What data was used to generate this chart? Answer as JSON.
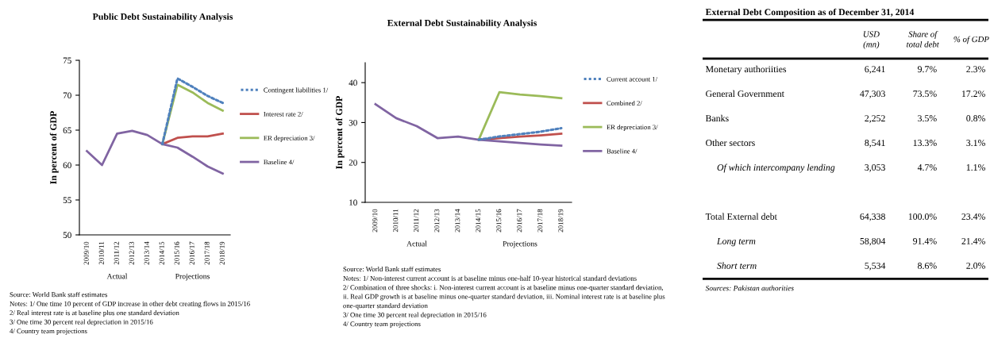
{
  "chart_data": [
    {
      "type": "line",
      "title": "Public Debt Sustainability Analysis",
      "ylabel": "In percent of GDP",
      "categories": [
        "2009/10",
        "2010/11",
        "2011/12",
        "2012/13",
        "2013/14",
        "2014/15",
        "2015/16",
        "2016/17",
        "2017/18",
        "2018/19"
      ],
      "ylim": [
        50,
        75
      ],
      "yticks": [
        50,
        55,
        60,
        65,
        70,
        75
      ],
      "legend": "right",
      "grid": false,
      "series": [
        {
          "name": "Contingent liabilities 1/",
          "color": "#4f81bd",
          "line_style": "dotted",
          "values": [
            null,
            null,
            null,
            null,
            null,
            63.0,
            72.4,
            71.2,
            69.9,
            68.9
          ]
        },
        {
          "name": "Interest rate 2/",
          "color": "#c0504d",
          "line_style": "solid",
          "values": [
            null,
            null,
            null,
            null,
            null,
            63.0,
            63.9,
            64.1,
            64.1,
            64.5
          ]
        },
        {
          "name": "ER depreciation 3/",
          "color": "#9bbb59",
          "line_style": "solid",
          "values": [
            null,
            null,
            null,
            null,
            null,
            63.0,
            71.5,
            70.4,
            68.9,
            67.8
          ]
        },
        {
          "name": "Baseline 4/",
          "color": "#8064a2",
          "line_style": "solid",
          "values": [
            62.0,
            60.0,
            64.5,
            64.9,
            64.3,
            63.0,
            62.5,
            61.2,
            59.8,
            58.8
          ]
        }
      ],
      "annotations": [
        "Actual",
        "Projections",
        "Source: World Bank staff estimates",
        "Notes: 1/ One time 10 percent of GDP increase in other debt creating flows in 2015/16",
        "2/ Real interest rate is at baseline plus one standard deviation",
        "3/ One time 30 percent real depreciation in 2015/16",
        "4/ Country team projections"
      ]
    },
    {
      "type": "line",
      "title": "External Debt Sustainability Analysis",
      "ylabel": "In percent of GDP",
      "categories": [
        "2009/10",
        "2010/11",
        "2011/12",
        "2012/13",
        "2013/14",
        "2014/15",
        "2015/16",
        "2016/17",
        "2017/18",
        "2018/19"
      ],
      "ylim": [
        10,
        45
      ],
      "yticks": [
        10,
        20,
        30,
        40
      ],
      "legend": "right",
      "grid": false,
      "series": [
        {
          "name": "Current account 1/",
          "color": "#4f81bd",
          "line_style": "dotted",
          "values": [
            null,
            null,
            null,
            null,
            null,
            25.7,
            26.5,
            27.1,
            27.7,
            28.6
          ]
        },
        {
          "name": "Combined 2/",
          "color": "#c0504d",
          "line_style": "solid",
          "values": [
            null,
            null,
            null,
            null,
            null,
            25.7,
            26.1,
            26.5,
            26.8,
            27.2
          ]
        },
        {
          "name": "ER depreciation 3/",
          "color": "#9bbb59",
          "line_style": "solid",
          "values": [
            null,
            null,
            null,
            null,
            null,
            25.7,
            37.6,
            37.0,
            36.6,
            36.1
          ]
        },
        {
          "name": "Baseline 4/",
          "color": "#8064a2",
          "line_style": "solid",
          "values": [
            34.6,
            31.1,
            29.1,
            26.1,
            26.5,
            25.7,
            25.3,
            24.9,
            24.5,
            24.2
          ]
        }
      ],
      "annotations": [
        "Actual",
        "Projections",
        "Source: World Bank staff estimates",
        "Notes: 1/ Non-interest current account is at baseline minus one-half 10-year historical standard deviations",
        "2/ Combination of three shocks: i. Non-interest current account is at baseline minus one-quarter standard deviation,",
        "ii. Real GDP growth is at baseline minus one-quarter standard deviation, iii. Nominal interest rate is at baseline plus",
        "one-quarter standard deviation",
        "3/ One time 30 percent real depreciation in 2015/16",
        "4/ Country team projections"
      ]
    },
    {
      "type": "other",
      "title": "External Debt Composition as of December 31, 2014",
      "categories": [
        "USD\n(mn)",
        "Share of\ntotal debt",
        "% of GDP"
      ],
      "y_categories": [
        "Monetary authoriities",
        "General Government",
        "Banks",
        "Other sectors",
        "Of which intercompany lending",
        null,
        "Total External debt",
        "Long term",
        "Short term"
      ],
      "cell_labels": [
        [
          "6,241",
          "9.7%",
          "2.3%"
        ],
        [
          "47,303",
          "73.5%",
          "17.2%"
        ],
        [
          "2,252",
          "3.5%",
          "0.8%"
        ],
        [
          "8,541",
          "13.3%",
          "3.1%"
        ],
        [
          "3,053",
          "4.7%",
          "1.1%"
        ],
        [
          null,
          null,
          null
        ],
        [
          "64,338",
          "100.0%",
          "23.4%"
        ],
        [
          "58,804",
          "91.4%",
          "21.4%"
        ],
        [
          "5,534",
          "8.6%",
          "2.0%"
        ]
      ],
      "annotations": [
        "Sources: Pakistan authorities"
      ]
    }
  ]
}
